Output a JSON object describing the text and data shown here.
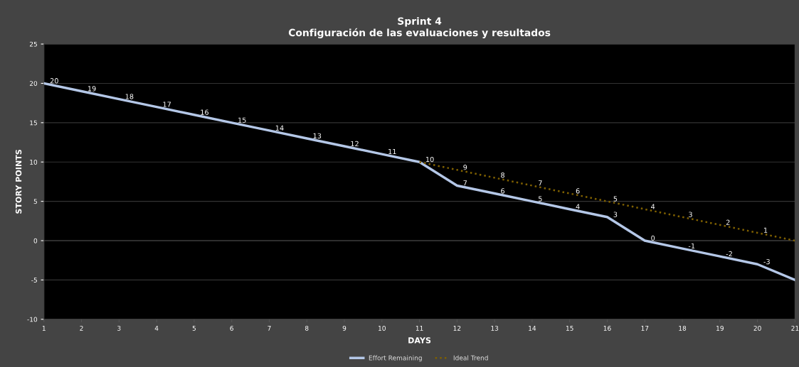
{
  "chart_data": {
    "type": "line",
    "title": "Sprint 4\nConfiguración de las evaluaciones y resultados",
    "xlabel": "DAYS",
    "ylabel": "STORY POINTS",
    "categories": [
      "1",
      "2",
      "3",
      "4",
      "5",
      "6",
      "7",
      "8",
      "9",
      "10",
      "11",
      "12",
      "13",
      "14",
      "15",
      "16",
      "17",
      "18",
      "19",
      "20",
      "21"
    ],
    "series": [
      {
        "name": "Effort Remaining",
        "color": "#b4c7e7",
        "line_style": "solid",
        "values": [
          20,
          19,
          18,
          17,
          16,
          15,
          14,
          13,
          12,
          11,
          10,
          7,
          6,
          5,
          4,
          3,
          0,
          -1,
          -2,
          -3,
          -5
        ],
        "value_labels": [
          "20",
          "19",
          "18",
          "17",
          "16",
          "15",
          "14",
          "13",
          "12",
          "11",
          "10",
          "7",
          "6",
          "5",
          "4",
          "3",
          "0",
          "-1",
          "-2",
          "-3",
          null
        ]
      },
      {
        "name": "Ideal Trend",
        "color": "#7f6000",
        "line_style": "dotted",
        "values": [
          null,
          null,
          null,
          null,
          null,
          null,
          null,
          null,
          null,
          null,
          10,
          9,
          8,
          7,
          6,
          5,
          4,
          3,
          2,
          1,
          0
        ],
        "value_labels": [
          null,
          null,
          null,
          null,
          null,
          null,
          null,
          null,
          null,
          null,
          null,
          "9",
          "8",
          "7",
          "6",
          "5",
          "4",
          "3",
          "2",
          "1",
          null
        ]
      }
    ],
    "ylim": [
      -10,
      25
    ],
    "yticks": [
      -10,
      -5,
      0,
      5,
      10,
      15,
      20,
      25
    ],
    "grid": "y",
    "legend": "bottom",
    "marker": "none"
  }
}
